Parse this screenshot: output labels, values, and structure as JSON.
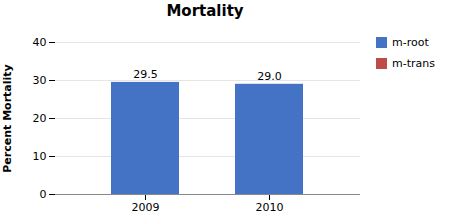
{
  "chart_data": {
    "type": "bar",
    "title": "Mortality",
    "ylabel": "Percent Mortality",
    "categories": [
      "2009",
      "2010"
    ],
    "series": [
      {
        "name": "m-root",
        "color": "#4472C4",
        "values": [
          29.5,
          29.0
        ],
        "value_labels": [
          "29.5",
          "29.0"
        ]
      },
      {
        "name": "m-trans",
        "color": "#BE4B48",
        "values": [
          null,
          null
        ]
      }
    ],
    "ylim": [
      0,
      40
    ],
    "yticks": [
      0,
      10,
      20,
      30,
      40
    ],
    "grid": true,
    "legend": "right",
    "data_labels": true
  }
}
